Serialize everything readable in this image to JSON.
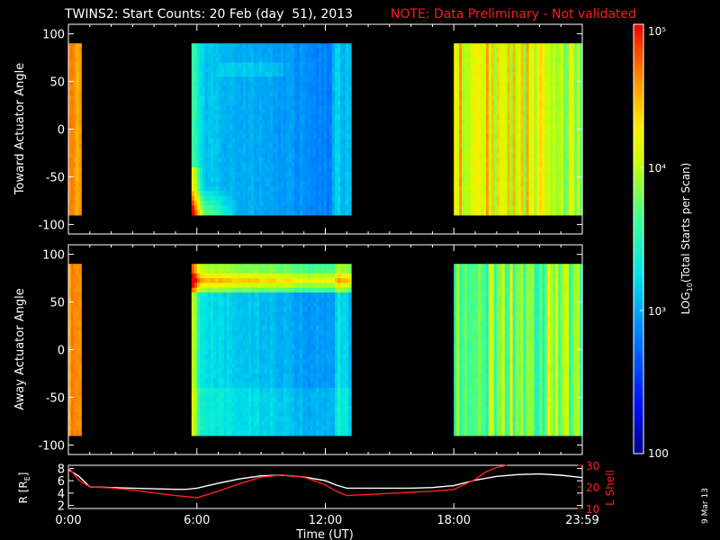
{
  "title": "TWINS2: Start Counts: 20 Feb (day  51), 2013",
  "note": "NOTE: Data Preliminary - Not validated",
  "date_stamp": "9 Mar 13",
  "colors": {
    "background": "#000000",
    "axes": "#ffffff",
    "note": "#ff1a1a",
    "r_line": "#ffffff",
    "lshell_line": "#ff2020"
  },
  "colorscale": "blue-cyan-green-yellow-orange-red (rainbow)",
  "colorbar": {
    "label": "LOG10(Total Starts per Scan)",
    "label_main": "LOG",
    "label_sub": "10",
    "label_tail": "(Total Starts per Scan)",
    "ticks": [
      "100",
      "10³",
      "10⁴",
      "10⁵"
    ],
    "tick_values": [
      100,
      1000,
      10000,
      100000
    ],
    "range": [
      100,
      100000
    ],
    "scale": "log"
  },
  "chart_data": [
    {
      "type": "heatmap",
      "panel": "toward",
      "ylabel": "Toward Actuator Angle",
      "xlim_hours": [
        0,
        24
      ],
      "ylim": [
        -110,
        110
      ],
      "yticks": [
        "100",
        "50",
        "0",
        "-50",
        "-100"
      ],
      "ytick_values": [
        100,
        50,
        0,
        -50,
        -100
      ],
      "data_y_range": [
        -90,
        90
      ],
      "data_intervals_hours": [
        [
          0.0,
          0.6
        ],
        [
          5.75,
          13.2
        ],
        [
          18.0,
          24.0
        ]
      ],
      "level_units": "log10(starts per scan)",
      "level_description": {
        "interval_1": "mostly 4.5-4.8 (orange-red)",
        "interval_2": "mostly 3.0-3.5 (cyan-blue), edges to 4.7 at start (low angles)",
        "interval_3": "3.6-4.8 (green-yellow-orange bands)"
      }
    },
    {
      "type": "heatmap",
      "panel": "away",
      "ylabel": "Away Actuator Angle",
      "xlim_hours": [
        0,
        24
      ],
      "ylim": [
        -110,
        110
      ],
      "yticks": [
        "100",
        "50",
        "0",
        "-50",
        "-100"
      ],
      "ytick_values": [
        100,
        50,
        0,
        -50,
        -100
      ],
      "data_y_range": [
        -90,
        90
      ],
      "data_intervals_hours": [
        [
          0.0,
          0.6
        ],
        [
          5.75,
          13.2
        ],
        [
          18.0,
          24.0
        ]
      ],
      "level_units": "log10(starts per scan)",
      "level_description": {
        "interval_1": "mostly 4.5-4.8 (orange-red)",
        "interval_2": "2.9-3.6 (blue-cyan), ring near +75 up to 4.7",
        "interval_3": "3.3-4.5 (cyan-green-yellow)"
      }
    },
    {
      "type": "line",
      "panel": "ephemeris",
      "xlabel": "Time (UT)",
      "xticks": [
        "0:00",
        "6:00",
        "12:00",
        "18:00",
        "23:59"
      ],
      "xtick_values": [
        0,
        6,
        12,
        18,
        24
      ],
      "xlim": [
        0,
        24
      ],
      "left_axis": {
        "label": "R [R",
        "label_sub": "E",
        "label_tail": "]",
        "ylim": [
          1.5,
          8.5
        ],
        "yticks": [
          "8",
          "6",
          "4",
          "2"
        ],
        "ytick_values": [
          8,
          6,
          4,
          2
        ]
      },
      "right_axis": {
        "label": "L Shell",
        "ylim": [
          10,
          30
        ],
        "yticks": [
          "30",
          "20",
          "10"
        ],
        "ytick_values": [
          30,
          20,
          10
        ]
      },
      "series": [
        {
          "axis": "left",
          "color": "#ffffff",
          "x": [
            0,
            0.5,
            1,
            2,
            3,
            4,
            5,
            5.5,
            6,
            7,
            8,
            9,
            10,
            11,
            12,
            12.5,
            13,
            14,
            15,
            16,
            17,
            18,
            19,
            20,
            21,
            22,
            23,
            24
          ],
          "y": [
            7.8,
            6.7,
            5.0,
            4.9,
            4.8,
            4.7,
            4.6,
            4.6,
            4.8,
            5.6,
            6.3,
            6.8,
            6.9,
            6.6,
            6.0,
            5.3,
            4.8,
            4.8,
            4.8,
            4.8,
            4.9,
            5.2,
            6.1,
            6.7,
            7.0,
            7.1,
            6.9,
            6.5
          ]
        },
        {
          "axis": "right",
          "color": "#ff2020",
          "x": [
            0,
            0.5,
            1,
            2,
            3,
            4,
            5,
            6,
            7,
            8,
            9,
            10,
            11,
            12,
            12.5,
            13,
            14,
            15,
            16,
            17,
            18,
            19,
            19.5,
            20,
            20.5
          ],
          "y": [
            29,
            23,
            20,
            19.5,
            18.5,
            17.2,
            16.0,
            15.0,
            18.0,
            21.5,
            24.5,
            25.5,
            24.5,
            21.0,
            18.0,
            16.0,
            16.5,
            17.0,
            17.5,
            18.0,
            18.8,
            23.5,
            27,
            29,
            31
          ]
        }
      ]
    }
  ]
}
